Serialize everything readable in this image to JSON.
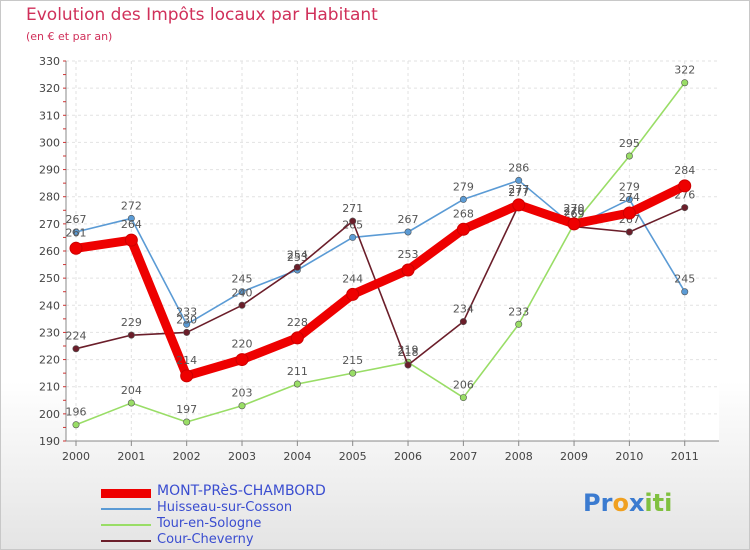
{
  "header": {
    "title": "Evolution des Impôts locaux par Habitant",
    "subtitle": "(en € et par an)"
  },
  "logo": {
    "part1": "Pr",
    "part2": "o",
    "part3": "x",
    "part4": "iti"
  },
  "chart_data": {
    "type": "line",
    "title": "Evolution des Impôts locaux par Habitant",
    "ylabel": "(en € et par an)",
    "xlabel": "",
    "x": [
      "2000",
      "2001",
      "2002",
      "2003",
      "2004",
      "2005",
      "2006",
      "2007",
      "2008",
      "2009",
      "2010",
      "2011"
    ],
    "ylim": [
      190,
      330
    ],
    "yticks": [
      190,
      200,
      210,
      220,
      230,
      240,
      250,
      260,
      270,
      280,
      290,
      300,
      310,
      320,
      330
    ],
    "grid": true,
    "legend_position": "bottom-left",
    "series": [
      {
        "name": "Huisseau-sur-Cosson",
        "color": "#5b9bd5",
        "values": [
          267,
          272,
          233,
          245,
          253,
          265,
          267,
          279,
          286,
          269,
          279,
          245
        ]
      },
      {
        "name": "Tour-en-Sologne",
        "color": "#99dd66",
        "values": [
          196,
          204,
          197,
          203,
          211,
          215,
          219,
          206,
          233,
          270,
          295,
          322
        ]
      },
      {
        "name": "Cour-Cheverny",
        "color": "#6b1e2a",
        "values": [
          224,
          229,
          230,
          240,
          254,
          271,
          218,
          234,
          277,
          269,
          267,
          276
        ]
      },
      {
        "name": "MONT-PRèS-CHAMBORD",
        "color": "#ee0000",
        "values": [
          261,
          264,
          214,
          220,
          228,
          244,
          253,
          268,
          277,
          270,
          274,
          284
        ],
        "highlight": true
      }
    ]
  }
}
